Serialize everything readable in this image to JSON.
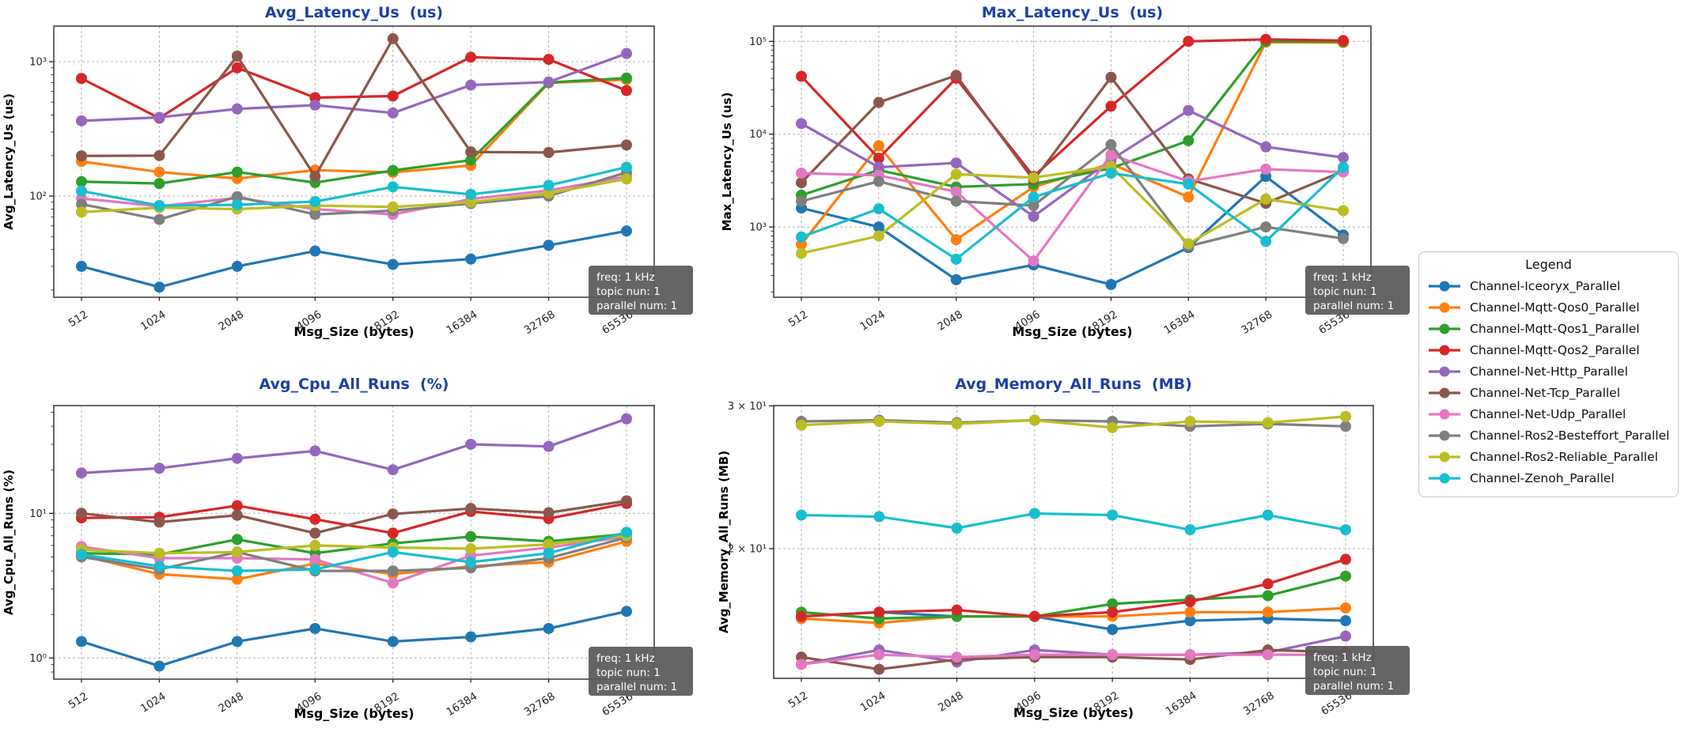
{
  "annotation": {
    "lines": [
      "freq: 1 kHz",
      "topic nun: 1",
      "parallel num: 1"
    ],
    "bg_color": "#595959",
    "text_color": "#ffffff"
  },
  "legend": {
    "title": "Legend",
    "items": [
      {
        "label": "Channel-Iceoryx_Parallel",
        "color": "#1f77b4"
      },
      {
        "label": "Channel-Mqtt-Qos0_Parallel",
        "color": "#ff7f0e"
      },
      {
        "label": "Channel-Mqtt-Qos1_Parallel",
        "color": "#2ca02c"
      },
      {
        "label": "Channel-Mqtt-Qos2_Parallel",
        "color": "#d62728"
      },
      {
        "label": "Channel-Net-Http_Parallel",
        "color": "#9467bd"
      },
      {
        "label": "Channel-Net-Tcp_Parallel",
        "color": "#8c564b"
      },
      {
        "label": "Channel-Net-Udp_Parallel",
        "color": "#e377c2"
      },
      {
        "label": "Channel-Ros2-Besteffort_Parallel",
        "color": "#7f7f7f"
      },
      {
        "label": "Channel-Ros2-Reliable_Parallel",
        "color": "#bcbd22"
      },
      {
        "label": "Channel-Zenoh_Parallel",
        "color": "#17becf"
      }
    ]
  },
  "style": {
    "title_color": "#1e40a5",
    "axis_color": "#262626",
    "grid_color": "#b3b3b3"
  },
  "chart_data": [
    {
      "type": "line",
      "title": "Avg_Latency_Us  (us)",
      "ylabel": "Avg_Latency_Us (us)",
      "xlabel": "Msg_Size (bytes)",
      "yscale": "log",
      "ylim": [
        18,
        1850
      ],
      "grid": true,
      "legend_position": "outside-right",
      "x": [
        512,
        1024,
        2048,
        4096,
        8192,
        16384,
        32768,
        65536
      ],
      "x_ticklabels": [
        "512",
        "1024",
        "2048",
        "4096",
        "8192",
        "16384",
        "32768",
        "65536"
      ],
      "yticks": [
        {
          "v": 1000,
          "label": "10³"
        },
        {
          "v": 100,
          "label": "10²"
        }
      ],
      "series": [
        {
          "name": "Channel-Iceoryx_Parallel",
          "color": "#1f77b4",
          "values": [
            30,
            21,
            30,
            39,
            31,
            34,
            43,
            55
          ]
        },
        {
          "name": "Channel-Mqtt-Qos0_Parallel",
          "color": "#ff7f0e",
          "values": [
            181,
            151,
            135,
            156,
            150,
            169,
            695,
            735
          ]
        },
        {
          "name": "Channel-Mqtt-Qos1_Parallel",
          "color": "#2ca02c",
          "values": [
            128,
            124,
            151,
            126,
            155,
            185,
            700,
            755
          ]
        },
        {
          "name": "Channel-Mqtt-Qos2_Parallel",
          "color": "#d62728",
          "values": [
            750,
            380,
            900,
            540,
            555,
            1080,
            1040,
            610
          ]
        },
        {
          "name": "Channel-Net-Http_Parallel",
          "color": "#9467bd",
          "values": [
            363,
            385,
            445,
            475,
            415,
            670,
            705,
            1150
          ]
        },
        {
          "name": "Channel-Net-Tcp_Parallel",
          "color": "#8c564b",
          "values": [
            199,
            200,
            1100,
            140,
            1480,
            213,
            211,
            240
          ]
        },
        {
          "name": "Channel-Net-Udp_Parallel",
          "color": "#e377c2",
          "values": [
            96,
            84,
            97,
            80,
            73,
            95,
            110,
            140
          ]
        },
        {
          "name": "Channel-Ros2-Besteffort_Parallel",
          "color": "#7f7f7f",
          "values": [
            87,
            67,
            99,
            73,
            78,
            88,
            100,
            150
          ]
        },
        {
          "name": "Channel-Ros2-Reliable_Parallel",
          "color": "#bcbd22",
          "values": [
            76,
            82,
            80,
            85,
            83,
            90,
            105,
            134
          ]
        },
        {
          "name": "Channel-Zenoh_Parallel",
          "color": "#17becf",
          "values": [
            109,
            85,
            86,
            91,
            117,
            103,
            120,
            164
          ]
        }
      ]
    },
    {
      "type": "line",
      "title": "Max_Latency_Us  (us)",
      "ylabel": "Max_Latency_Us (us)",
      "xlabel": "Msg_Size (bytes)",
      "yscale": "log",
      "ylim": [
        175,
        146000
      ],
      "grid": true,
      "legend_position": "outside-right",
      "x": [
        512,
        1024,
        2048,
        4096,
        8192,
        16384,
        32768,
        65536
      ],
      "x_ticklabels": [
        "512",
        "1024",
        "2048",
        "4096",
        "8192",
        "16384",
        "32768",
        "65536"
      ],
      "yticks": [
        {
          "v": 100000,
          "label": "10⁵"
        },
        {
          "v": 10000,
          "label": "10⁴"
        },
        {
          "v": 1000,
          "label": "10³"
        }
      ],
      "series": [
        {
          "name": "Channel-Iceoryx_Parallel",
          "color": "#1f77b4",
          "values": [
            1600,
            1000,
            270,
            390,
            240,
            600,
            3500,
            820
          ]
        },
        {
          "name": "Channel-Mqtt-Qos0_Parallel",
          "color": "#ff7f0e",
          "values": [
            650,
            7500,
            730,
            2700,
            4800,
            2100,
            98000,
            97000
          ]
        },
        {
          "name": "Channel-Mqtt-Qos1_Parallel",
          "color": "#2ca02c",
          "values": [
            2200,
            4100,
            2700,
            2900,
            4300,
            8500,
            100000,
            99000
          ]
        },
        {
          "name": "Channel-Mqtt-Qos2_Parallel",
          "color": "#d62728",
          "values": [
            42000,
            5500,
            40000,
            3500,
            20000,
            100000,
            105000,
            102000
          ]
        },
        {
          "name": "Channel-Net-Http_Parallel",
          "color": "#9467bd",
          "values": [
            13000,
            4400,
            4900,
            1300,
            5300,
            18000,
            7300,
            5600
          ]
        },
        {
          "name": "Channel-Net-Tcp_Parallel",
          "color": "#8c564b",
          "values": [
            3000,
            22000,
            43000,
            3200,
            41000,
            3300,
            1800,
            4000
          ]
        },
        {
          "name": "Channel-Net-Udp_Parallel",
          "color": "#e377c2",
          "values": [
            3800,
            3600,
            2400,
            430,
            6000,
            3100,
            4200,
            3900
          ]
        },
        {
          "name": "Channel-Ros2-Besteffort_Parallel",
          "color": "#7f7f7f",
          "values": [
            1900,
            3100,
            1900,
            1700,
            7700,
            620,
            1000,
            750
          ]
        },
        {
          "name": "Channel-Ros2-Reliable_Parallel",
          "color": "#bcbd22",
          "values": [
            520,
            800,
            3700,
            3400,
            4500,
            660,
            2000,
            1500
          ]
        },
        {
          "name": "Channel-Zenoh_Parallel",
          "color": "#17becf",
          "values": [
            780,
            1570,
            450,
            2100,
            3800,
            2900,
            700,
            4400
          ]
        }
      ]
    },
    {
      "type": "line",
      "title": "Avg_Cpu_All_Runs  (%)",
      "ylabel": "Avg_Cpu_All_Runs (%)",
      "xlabel": "Msg_Size (bytes)",
      "yscale": "log",
      "ylim": [
        0.71,
        56
      ],
      "grid": true,
      "legend_position": "outside-right",
      "x": [
        512,
        1024,
        2048,
        4096,
        8192,
        16384,
        32768,
        65536
      ],
      "x_ticklabels": [
        "512",
        "1024",
        "2048",
        "4096",
        "8192",
        "16384",
        "32768",
        "65536"
      ],
      "yticks": [
        {
          "v": 10,
          "label": "10¹"
        },
        {
          "v": 1,
          "label": "10⁰"
        }
      ],
      "series": [
        {
          "name": "Channel-Iceoryx_Parallel",
          "color": "#1f77b4",
          "values": [
            1.3,
            0.88,
            1.3,
            1.6,
            1.3,
            1.4,
            1.6,
            2.1
          ]
        },
        {
          "name": "Channel-Mqtt-Qos0_Parallel",
          "color": "#ff7f0e",
          "values": [
            5.1,
            3.8,
            3.5,
            4.5,
            3.8,
            4.3,
            4.6,
            6.4
          ]
        },
        {
          "name": "Channel-Mqtt-Qos1_Parallel",
          "color": "#2ca02c",
          "values": [
            5.3,
            5.2,
            6.6,
            5.3,
            6.2,
            6.9,
            6.4,
            7.2
          ]
        },
        {
          "name": "Channel-Mqtt-Qos2_Parallel",
          "color": "#d62728",
          "values": [
            9.3,
            9.4,
            11.3,
            9.1,
            7.3,
            10.3,
            9.2,
            11.7
          ]
        },
        {
          "name": "Channel-Net-Http_Parallel",
          "color": "#9467bd",
          "values": [
            19,
            20.5,
            24,
            27,
            20,
            30,
            29,
            45
          ]
        },
        {
          "name": "Channel-Net-Tcp_Parallel",
          "color": "#8c564b",
          "values": [
            10.0,
            8.7,
            9.7,
            7.3,
            9.9,
            10.8,
            10.1,
            12.2
          ]
        },
        {
          "name": "Channel-Net-Udp_Parallel",
          "color": "#e377c2",
          "values": [
            5.9,
            4.9,
            4.9,
            4.8,
            3.3,
            5.1,
            5.8,
            6.9
          ]
        },
        {
          "name": "Channel-Ros2-Besteffort_Parallel",
          "color": "#7f7f7f",
          "values": [
            5.0,
            4.1,
            5.4,
            4.0,
            4.0,
            4.2,
            4.9,
            6.8
          ]
        },
        {
          "name": "Channel-Ros2-Reliable_Parallel",
          "color": "#bcbd22",
          "values": [
            5.6,
            5.3,
            5.4,
            6.0,
            5.8,
            5.7,
            6.1,
            7.0
          ]
        },
        {
          "name": "Channel-Zenoh_Parallel",
          "color": "#17becf",
          "values": [
            5.2,
            4.3,
            4.0,
            4.1,
            5.4,
            4.6,
            5.3,
            7.4
          ]
        }
      ]
    },
    {
      "type": "line",
      "title": "Avg_Memory_All_Runs  (MB)",
      "ylabel": "Avg_Memory_All_Runs (MB)",
      "xlabel": "Msg_Size (bytes)",
      "yscale": "log",
      "ylim": [
        13.7,
        30.3
      ],
      "grid": true,
      "legend_position": "outside-right",
      "x": [
        512,
        1024,
        2048,
        4096,
        8192,
        16384,
        32768,
        65536
      ],
      "x_ticklabels": [
        "512",
        "1024",
        "2048",
        "4096",
        "8192",
        "16384",
        "32768",
        "65536"
      ],
      "yticks": [
        {
          "v": 30,
          "label": "3 × 10¹"
        },
        {
          "v": 20,
          "label": "2 × 10¹"
        }
      ],
      "series": [
        {
          "name": "Channel-Iceoryx_Parallel",
          "color": "#1f77b4",
          "values": [
            16.5,
            16.7,
            16.5,
            16.5,
            15.9,
            16.3,
            16.4,
            16.3
          ]
        },
        {
          "name": "Channel-Mqtt-Qos0_Parallel",
          "color": "#ff7f0e",
          "values": [
            16.4,
            16.2,
            16.5,
            16.5,
            16.5,
            16.7,
            16.7,
            16.9
          ]
        },
        {
          "name": "Channel-Mqtt-Qos1_Parallel",
          "color": "#2ca02c",
          "values": [
            16.7,
            16.4,
            16.5,
            16.5,
            17.1,
            17.3,
            17.5,
            18.5
          ]
        },
        {
          "name": "Channel-Mqtt-Qos2_Parallel",
          "color": "#d62728",
          "values": [
            16.5,
            16.7,
            16.8,
            16.5,
            16.7,
            17.2,
            18.1,
            19.4
          ]
        },
        {
          "name": "Channel-Net-Http_Parallel",
          "color": "#9467bd",
          "values": [
            14.4,
            15.0,
            14.5,
            15.0,
            14.8,
            14.8,
            14.9,
            15.6
          ]
        },
        {
          "name": "Channel-Net-Tcp_Parallel",
          "color": "#8c564b",
          "values": [
            14.7,
            14.2,
            14.6,
            14.7,
            14.7,
            14.6,
            15.0,
            14.9
          ]
        },
        {
          "name": "Channel-Net-Udp_Parallel",
          "color": "#e377c2",
          "values": [
            14.4,
            14.8,
            14.7,
            14.8,
            14.8,
            14.8,
            14.8,
            14.8
          ]
        },
        {
          "name": "Channel-Ros2-Besteffort_Parallel",
          "color": "#7f7f7f",
          "values": [
            28.7,
            28.8,
            28.6,
            28.8,
            28.7,
            28.3,
            28.5,
            28.3
          ]
        },
        {
          "name": "Channel-Ros2-Reliable_Parallel",
          "color": "#bcbd22",
          "values": [
            28.4,
            28.7,
            28.5,
            28.8,
            28.2,
            28.7,
            28.6,
            29.1
          ]
        },
        {
          "name": "Channel-Zenoh_Parallel",
          "color": "#17becf",
          "values": [
            22.0,
            21.9,
            21.2,
            22.1,
            22.0,
            21.1,
            22.0,
            21.1
          ]
        }
      ]
    }
  ]
}
